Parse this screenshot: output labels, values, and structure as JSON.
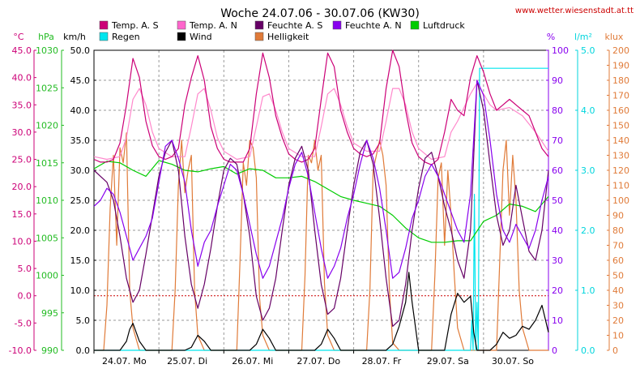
{
  "chart_data": {
    "type": "line",
    "title": "Woche 24.07.06 - 30.07.06 (KW30)",
    "source_url": "www.wetter.wiesenstadt.at.tt",
    "days": [
      "24.07.  Mo",
      "25.07.  Di",
      "26.07.  Mi",
      "27.07.  Do",
      "28.07.  Fr",
      "29.07.  Sa",
      "30.07.  So"
    ],
    "x_range_days": [
      0,
      7
    ],
    "grid": true,
    "legend": [
      {
        "label": "Temp. A. S",
        "color": "#cc0077"
      },
      {
        "label": "Temp. A. N",
        "color": "#ff66cc"
      },
      {
        "label": "Feuchte A. S",
        "color": "#660066"
      },
      {
        "label": "Feuchte A. N",
        "color": "#8800ee"
      },
      {
        "label": "Luftdruck",
        "color": "#00cc00"
      },
      {
        "label": "Regen",
        "color": "#00e5ee"
      },
      {
        "label": "Wind",
        "color": "#000000"
      },
      {
        "label": "Helligkeit",
        "color": "#e07b39"
      }
    ],
    "axes": {
      "temp": {
        "unit": "°C",
        "color": "#cc0077",
        "range": [
          -10,
          45
        ],
        "ticks": [
          "45.0",
          "40.0",
          "35.0",
          "30.0",
          "25.0",
          "20.0",
          "15.0",
          "10.0",
          "5.0",
          "0.0",
          "-5.0",
          "-10.0"
        ]
      },
      "press": {
        "unit": "hPa",
        "color": "#22bb22",
        "range": [
          990,
          1030
        ],
        "ticks": [
          "1030",
          "1025",
          "1020",
          "1015",
          "1010",
          "1005",
          "1000",
          "995",
          "990"
        ]
      },
      "wind": {
        "unit": "km/h",
        "color": "#000000",
        "range": [
          0,
          50
        ],
        "ticks": [
          "50.0",
          "45.0",
          "40.0",
          "35.0",
          "30.0",
          "25.0",
          "20.0",
          "15.0",
          "10.0",
          "5.0",
          "0.0"
        ]
      },
      "hum": {
        "unit": "%",
        "color": "#8800ee",
        "range": [
          0,
          100
        ],
        "ticks": [
          "100",
          "90",
          "80",
          "70",
          "60",
          "50",
          "40",
          "30",
          "20",
          "10",
          "0"
        ]
      },
      "rain": {
        "unit": "l/m²",
        "color": "#00d5dd",
        "range": [
          0,
          5
        ],
        "ticks": [
          "5.0",
          "4.0",
          "3.0",
          "2.0",
          "1.0",
          "0.0"
        ]
      },
      "lux": {
        "unit": "klux",
        "color": "#e07b39",
        "range": [
          0,
          200
        ],
        "ticks": [
          "200",
          "190",
          "180",
          "170",
          "160",
          "150",
          "140",
          "130",
          "120",
          "110",
          "100",
          "90",
          "80",
          "70",
          "60",
          "50",
          "40",
          "30",
          "20",
          "10",
          "0"
        ]
      }
    },
    "series": [
      {
        "name": "Temp. A. S",
        "axis": "temp",
        "color": "#cc0077",
        "x": [
          0,
          0.1,
          0.2,
          0.3,
          0.4,
          0.5,
          0.6,
          0.7,
          0.8,
          0.9,
          1,
          1.1,
          1.2,
          1.3,
          1.4,
          1.5,
          1.6,
          1.7,
          1.8,
          1.9,
          2,
          2.1,
          2.2,
          2.3,
          2.4,
          2.5,
          2.6,
          2.7,
          2.8,
          2.9,
          3,
          3.1,
          3.2,
          3.3,
          3.4,
          3.5,
          3.6,
          3.7,
          3.8,
          3.9,
          4,
          4.1,
          4.2,
          4.3,
          4.4,
          4.5,
          4.6,
          4.7,
          4.8,
          4.9,
          5,
          5.1,
          5.2,
          5.3,
          5.4,
          5.5,
          5.6,
          5.7,
          5.8,
          5.9,
          6,
          6.1,
          6.2,
          6.3,
          6.4,
          6.5,
          6.6,
          6.7,
          6.8,
          6.9,
          7
        ],
        "y": [
          25,
          24.5,
          24.5,
          25,
          28,
          35,
          43.5,
          40,
          32,
          27.5,
          25.5,
          25,
          25.5,
          27,
          35,
          40,
          44,
          39.5,
          31,
          27,
          25,
          24.5,
          24.5,
          24.5,
          27,
          37,
          44.5,
          40,
          33,
          29,
          26,
          25,
          24.5,
          25,
          27,
          36,
          44.5,
          42,
          34,
          30,
          27,
          26,
          25.5,
          26,
          28,
          38,
          45,
          42,
          34,
          28,
          25.5,
          24.5,
          24,
          25,
          30,
          36,
          34,
          33,
          40,
          44,
          41,
          37,
          34,
          35,
          36,
          35,
          34,
          33,
          30,
          27,
          25.5
        ]
      },
      {
        "name": "Temp. A. N",
        "axis": "temp",
        "color": "#ff88cc",
        "x": [
          0,
          0.2,
          0.4,
          0.5,
          0.6,
          0.7,
          0.8,
          0.9,
          1,
          1.2,
          1.4,
          1.5,
          1.6,
          1.7,
          1.8,
          1.9,
          2,
          2.2,
          2.4,
          2.5,
          2.6,
          2.7,
          2.8,
          2.9,
          3,
          3.2,
          3.4,
          3.5,
          3.6,
          3.7,
          3.8,
          3.9,
          4,
          4.2,
          4.4,
          4.5,
          4.6,
          4.7,
          4.8,
          4.9,
          5,
          5.2,
          5.4,
          5.5,
          5.6,
          5.8,
          5.9,
          6,
          6.1,
          6.2,
          6.4,
          6.6,
          6.8,
          7
        ],
        "y": [
          25.5,
          25,
          25.5,
          29,
          36,
          38,
          35,
          30,
          27,
          25.5,
          25.5,
          31,
          37,
          38,
          34,
          29,
          26.5,
          25,
          25.5,
          31,
          36.5,
          37,
          34,
          30,
          27,
          25.5,
          25.5,
          31,
          37,
          38,
          35,
          31,
          28,
          26.5,
          26.5,
          32,
          38,
          38,
          35,
          30,
          27,
          25,
          25.5,
          30,
          32,
          37,
          39,
          37,
          35,
          34,
          34.5,
          33,
          30,
          26.5
        ]
      },
      {
        "name": "Feuchte A. S",
        "axis": "hum",
        "color": "#660066",
        "x": [
          0,
          0.1,
          0.2,
          0.3,
          0.4,
          0.5,
          0.6,
          0.7,
          0.8,
          0.9,
          1,
          1.1,
          1.2,
          1.3,
          1.4,
          1.5,
          1.6,
          1.7,
          1.8,
          1.9,
          2,
          2.1,
          2.2,
          2.3,
          2.4,
          2.5,
          2.6,
          2.7,
          2.8,
          2.9,
          3,
          3.1,
          3.2,
          3.3,
          3.4,
          3.5,
          3.6,
          3.7,
          3.8,
          3.9,
          4,
          4.1,
          4.2,
          4.3,
          4.4,
          4.5,
          4.6,
          4.7,
          4.8,
          4.9,
          5,
          5.1,
          5.2,
          5.3,
          5.4,
          5.5,
          5.6,
          5.7,
          5.8,
          5.9,
          6,
          6.1,
          6.2,
          6.3,
          6.4,
          6.5,
          6.6,
          6.7,
          6.8,
          6.9,
          7
        ],
        "y": [
          60,
          58,
          56,
          50,
          38,
          24,
          16,
          20,
          32,
          45,
          58,
          66,
          70,
          60,
          38,
          22,
          14,
          22,
          34,
          48,
          60,
          64,
          62,
          52,
          38,
          18,
          10,
          14,
          24,
          40,
          55,
          64,
          68,
          60,
          40,
          22,
          12,
          14,
          24,
          40,
          55,
          66,
          70,
          62,
          44,
          24,
          8,
          10,
          22,
          40,
          54,
          64,
          66,
          58,
          48,
          40,
          30,
          24,
          40,
          90,
          80,
          62,
          45,
          35,
          40,
          55,
          44,
          33,
          30,
          40,
          60
        ]
      },
      {
        "name": "Feuchte A. N",
        "axis": "hum",
        "color": "#8800ee",
        "x": [
          0,
          0.1,
          0.2,
          0.3,
          0.4,
          0.5,
          0.6,
          0.7,
          0.8,
          0.9,
          1,
          1.1,
          1.2,
          1.3,
          1.4,
          1.5,
          1.6,
          1.7,
          1.8,
          1.9,
          2,
          2.1,
          2.2,
          2.3,
          2.4,
          2.5,
          2.6,
          2.7,
          2.8,
          2.9,
          3,
          3.1,
          3.2,
          3.3,
          3.4,
          3.5,
          3.6,
          3.7,
          3.8,
          3.9,
          4,
          4.1,
          4.2,
          4.3,
          4.4,
          4.5,
          4.6,
          4.7,
          4.8,
          4.9,
          5,
          5.1,
          5.2,
          5.3,
          5.4,
          5.5,
          5.6,
          5.7,
          5.8,
          5.9,
          6,
          6.1,
          6.2,
          6.3,
          6.4,
          6.5,
          6.6,
          6.7,
          6.8,
          6.9,
          7
        ],
        "y": [
          48,
          50,
          54,
          52,
          46,
          38,
          30,
          34,
          38,
          44,
          56,
          68,
          70,
          64,
          56,
          40,
          28,
          36,
          40,
          48,
          55,
          62,
          60,
          52,
          42,
          32,
          24,
          28,
          36,
          44,
          54,
          62,
          66,
          58,
          46,
          34,
          24,
          28,
          34,
          44,
          52,
          62,
          70,
          64,
          54,
          40,
          24,
          26,
          34,
          44,
          50,
          58,
          62,
          58,
          52,
          46,
          40,
          36,
          52,
          90,
          85,
          70,
          52,
          40,
          36,
          42,
          38,
          34,
          40,
          50,
          58
        ]
      },
      {
        "name": "Luftdruck",
        "axis": "press",
        "color": "#00cc00",
        "x": [
          0,
          0.2,
          0.4,
          0.6,
          0.8,
          1,
          1.2,
          1.4,
          1.6,
          1.8,
          2,
          2.2,
          2.4,
          2.6,
          2.8,
          3,
          3.2,
          3.4,
          3.6,
          3.8,
          4,
          4.2,
          4.4,
          4.6,
          4.8,
          5,
          5.2,
          5.4,
          5.6,
          5.8,
          6,
          6.2,
          6.4,
          6.6,
          6.8,
          7
        ],
        "y": [
          1014.2,
          1015.2,
          1015.0,
          1014.0,
          1013.2,
          1015.3,
          1014.8,
          1014.0,
          1013.8,
          1014.2,
          1014.5,
          1013.5,
          1014.2,
          1014.0,
          1013.0,
          1013.0,
          1013.2,
          1012.5,
          1011.5,
          1010.5,
          1010.0,
          1009.6,
          1009.2,
          1008.0,
          1006.3,
          1005.0,
          1004.4,
          1004.4,
          1004.6,
          1004.6,
          1007.2,
          1008.0,
          1009.5,
          1009.2,
          1008.5,
          1010.5
        ]
      },
      {
        "name": "Wind",
        "axis": "wind",
        "color": "#000000",
        "x": [
          0,
          0.2,
          0.3,
          0.4,
          0.5,
          0.55,
          0.6,
          0.7,
          0.8,
          1,
          1.2,
          1.4,
          1.5,
          1.6,
          1.7,
          1.8,
          2,
          2.2,
          2.4,
          2.5,
          2.6,
          2.7,
          2.8,
          3,
          3.2,
          3.4,
          3.5,
          3.6,
          3.7,
          3.8,
          4,
          4.2,
          4.4,
          4.5,
          4.6,
          4.7,
          4.8,
          4.85,
          4.9,
          5,
          5.2,
          5.4,
          5.5,
          5.6,
          5.7,
          5.8,
          5.85,
          5.9,
          6,
          6.1,
          6.2,
          6.3,
          6.4,
          6.5,
          6.6,
          6.7,
          6.8,
          6.9,
          7
        ],
        "y": [
          0,
          0,
          0,
          0,
          1.5,
          3.5,
          4.5,
          1.5,
          0,
          0,
          0,
          0,
          0.5,
          2.5,
          1.5,
          0,
          0,
          0,
          0,
          1,
          3.5,
          2,
          0,
          0,
          0,
          0,
          1,
          3.5,
          2,
          0,
          0,
          0,
          0,
          0,
          1,
          4,
          8,
          13,
          8,
          0,
          0,
          0,
          6,
          9.5,
          8,
          9,
          3,
          0,
          0,
          0,
          1,
          3,
          2,
          2.5,
          4,
          3.5,
          5,
          7.5,
          3
        ]
      },
      {
        "name": "Regen",
        "axis": "rain",
        "color": "#00e5ee",
        "x": [
          0,
          5.8,
          5.82,
          5.84,
          5.86,
          5.88,
          5.9,
          5.92,
          5.94,
          5.96,
          7
        ],
        "y": [
          0,
          0,
          0.5,
          0,
          2.6,
          0,
          0.8,
          0,
          4.7,
          4.7,
          4.7
        ]
      },
      {
        "name": "Helligkeit",
        "axis": "lux",
        "color": "#e07b39",
        "x": [
          0,
          0.15,
          0.2,
          0.25,
          0.3,
          0.35,
          0.4,
          0.45,
          0.5,
          0.55,
          0.6,
          0.7,
          0.8,
          1,
          1.2,
          1.25,
          1.3,
          1.35,
          1.4,
          1.45,
          1.5,
          1.55,
          1.6,
          1.7,
          1.8,
          2,
          2.2,
          2.25,
          2.3,
          2.35,
          2.4,
          2.45,
          2.5,
          2.55,
          2.6,
          2.7,
          2.8,
          3,
          3.2,
          3.25,
          3.3,
          3.35,
          3.4,
          3.45,
          3.5,
          3.55,
          3.6,
          3.7,
          3.8,
          4,
          4.2,
          4.25,
          4.3,
          4.35,
          4.4,
          4.45,
          4.5,
          4.55,
          4.6,
          4.7,
          4.8,
          5,
          5.2,
          5.25,
          5.3,
          5.35,
          5.4,
          5.45,
          5.5,
          5.55,
          5.6,
          5.7,
          5.8,
          6,
          6.2,
          6.25,
          6.3,
          6.35,
          6.4,
          6.45,
          6.5,
          6.55,
          6.6,
          6.7,
          6.8,
          7
        ],
        "y": [
          0,
          0,
          30,
          95,
          130,
          70,
          135,
          125,
          145,
          40,
          15,
          0,
          0,
          0,
          0,
          40,
          110,
          140,
          105,
          120,
          130,
          40,
          10,
          0,
          0,
          0,
          0,
          60,
          125,
          110,
          140,
          135,
          115,
          35,
          10,
          0,
          0,
          0,
          0,
          50,
          130,
          125,
          140,
          120,
          130,
          45,
          10,
          0,
          0,
          0,
          0,
          40,
          120,
          130,
          140,
          130,
          110,
          40,
          5,
          0,
          0,
          0,
          0,
          50,
          115,
          125,
          70,
          120,
          90,
          50,
          15,
          0,
          0,
          0,
          0,
          60,
          120,
          140,
          90,
          130,
          100,
          40,
          15,
          0,
          0,
          0
        ]
      }
    ]
  }
}
